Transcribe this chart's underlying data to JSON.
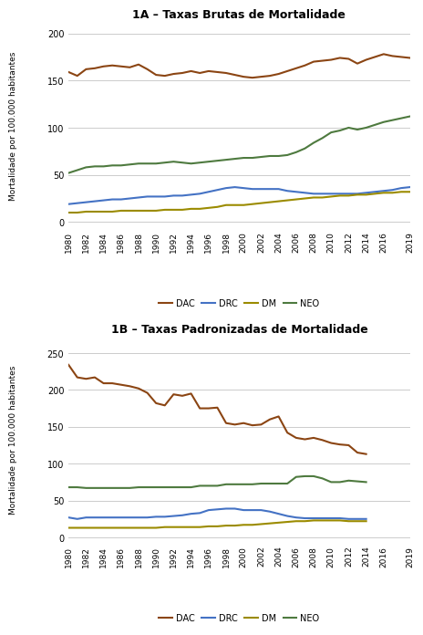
{
  "title_A": "1A – Taxas Brutas de Mortalidade",
  "title_B": "1B – Taxas Padronizadas de Mortalidade",
  "ylabel": "Mortalidade por 100.000 habitantes",
  "years_A": [
    1980,
    1981,
    1982,
    1983,
    1984,
    1985,
    1986,
    1987,
    1988,
    1989,
    1990,
    1991,
    1992,
    1993,
    1994,
    1995,
    1996,
    1997,
    1998,
    1999,
    2000,
    2001,
    2002,
    2003,
    2004,
    2005,
    2006,
    2007,
    2008,
    2009,
    2010,
    2011,
    2012,
    2013,
    2014,
    2015,
    2016,
    2017,
    2018,
    2019
  ],
  "A_DAC": [
    159,
    155,
    162,
    163,
    165,
    166,
    165,
    164,
    167,
    162,
    156,
    155,
    157,
    158,
    160,
    158,
    160,
    159,
    158,
    156,
    154,
    153,
    154,
    155,
    157,
    160,
    163,
    166,
    170,
    171,
    172,
    174,
    173,
    168,
    172,
    175,
    178,
    176,
    175,
    174
  ],
  "A_DRC": [
    19,
    20,
    21,
    22,
    23,
    24,
    24,
    25,
    26,
    27,
    27,
    27,
    28,
    28,
    29,
    30,
    32,
    34,
    36,
    37,
    36,
    35,
    35,
    35,
    35,
    33,
    32,
    31,
    30,
    30,
    30,
    30,
    30,
    30,
    31,
    32,
    33,
    34,
    36,
    37
  ],
  "A_DM": [
    10,
    10,
    11,
    11,
    11,
    11,
    12,
    12,
    12,
    12,
    12,
    13,
    13,
    13,
    14,
    14,
    15,
    16,
    18,
    18,
    18,
    19,
    20,
    21,
    22,
    23,
    24,
    25,
    26,
    26,
    27,
    28,
    28,
    29,
    29,
    30,
    31,
    31,
    32,
    32
  ],
  "A_NEO": [
    52,
    55,
    58,
    59,
    59,
    60,
    60,
    61,
    62,
    62,
    62,
    63,
    64,
    63,
    62,
    63,
    64,
    65,
    66,
    67,
    68,
    68,
    69,
    70,
    70,
    71,
    74,
    78,
    84,
    89,
    95,
    97,
    100,
    98,
    100,
    103,
    106,
    108,
    110,
    112
  ],
  "years_B": [
    1980,
    1981,
    1982,
    1983,
    1984,
    1985,
    1986,
    1987,
    1988,
    1989,
    1990,
    1991,
    1992,
    1993,
    1994,
    1995,
    1996,
    1997,
    1998,
    1999,
    2000,
    2001,
    2002,
    2003,
    2004,
    2005,
    2006,
    2007,
    2008,
    2009,
    2010,
    2011,
    2012,
    2013,
    2014
  ],
  "B_DAC": [
    234,
    217,
    215,
    217,
    209,
    209,
    207,
    205,
    202,
    196,
    182,
    179,
    194,
    192,
    195,
    175,
    175,
    176,
    155,
    153,
    155,
    152,
    153,
    160,
    164,
    142,
    135,
    133,
    135,
    132,
    128,
    126,
    125,
    115,
    113
  ],
  "B_DRC": [
    27,
    25,
    27,
    27,
    27,
    27,
    27,
    27,
    27,
    27,
    28,
    28,
    29,
    30,
    32,
    33,
    37,
    38,
    39,
    39,
    37,
    37,
    37,
    35,
    32,
    29,
    27,
    26,
    26,
    26,
    26,
    26,
    25,
    25,
    25
  ],
  "B_DM": [
    13,
    13,
    13,
    13,
    13,
    13,
    13,
    13,
    13,
    13,
    13,
    14,
    14,
    14,
    14,
    14,
    15,
    15,
    16,
    16,
    17,
    17,
    18,
    19,
    20,
    21,
    22,
    22,
    23,
    23,
    23,
    23,
    22,
    22,
    22
  ],
  "B_NEO": [
    68,
    68,
    67,
    67,
    67,
    67,
    67,
    67,
    68,
    68,
    68,
    68,
    68,
    68,
    68,
    70,
    70,
    70,
    72,
    72,
    72,
    72,
    73,
    73,
    73,
    73,
    82,
    83,
    83,
    80,
    75,
    75,
    77,
    76,
    75
  ],
  "color_DAC": "#8B4513",
  "color_DRC": "#4472C4",
  "color_DM": "#9B8B00",
  "color_NEO": "#4E7A3F",
  "xlim": [
    1980,
    2019
  ],
  "ylim_A": [
    -5,
    210
  ],
  "ylim_B": [
    -5,
    270
  ],
  "yticks_A": [
    0,
    50,
    100,
    150,
    200
  ],
  "yticks_B": [
    0,
    50,
    100,
    150,
    200,
    250
  ],
  "xticks": [
    1980,
    1982,
    1984,
    1986,
    1988,
    1990,
    1992,
    1994,
    1996,
    1998,
    2000,
    2002,
    2004,
    2006,
    2008,
    2010,
    2012,
    2014,
    2016,
    2019
  ],
  "legend_labels": [
    "DAC",
    "DRC",
    "DM",
    "NEO"
  ],
  "bg_color": "#FFFFFF",
  "line_width": 1.5
}
